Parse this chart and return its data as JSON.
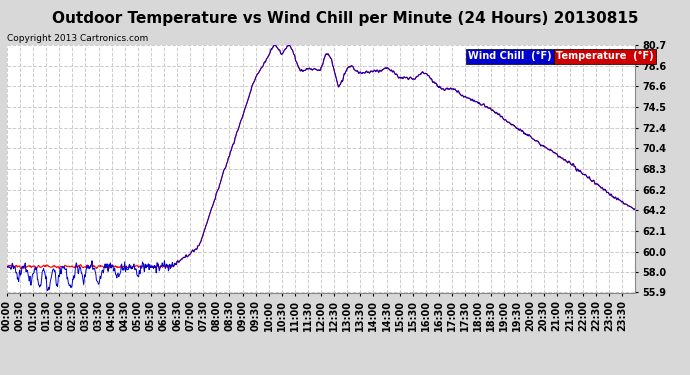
{
  "title": "Outdoor Temperature vs Wind Chill per Minute (24 Hours) 20130815",
  "copyright": "Copyright 2013 Cartronics.com",
  "legend_wind_chill": "Wind Chill  (°F)",
  "legend_temperature": "Temperature  (°F)",
  "ylim": [
    55.9,
    80.7
  ],
  "yticks": [
    55.9,
    58.0,
    60.0,
    62.1,
    64.2,
    66.2,
    68.3,
    70.4,
    72.4,
    74.5,
    76.6,
    78.6,
    80.7
  ],
  "bg_color": "#d8d8d8",
  "plot_bg_color": "#ffffff",
  "grid_color": "#cccccc",
  "temp_color": "#ff0000",
  "wind_color": "#0000cc",
  "title_fontsize": 11,
  "tick_label_fontsize": 7,
  "n_minutes": 1440,
  "x_tick_interval": 30
}
